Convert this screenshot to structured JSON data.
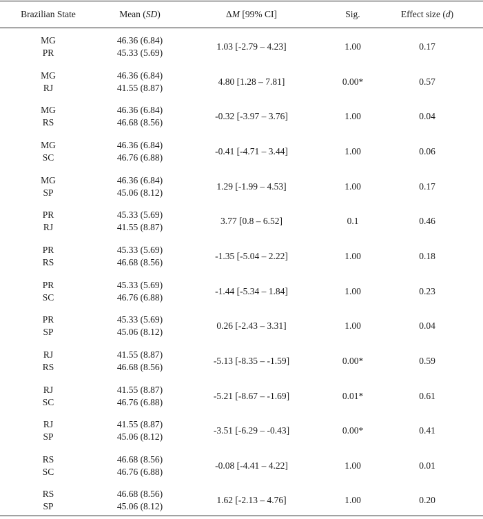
{
  "table": {
    "headers": {
      "state": "Brazilian State",
      "mean_pre": "Mean (",
      "mean_it": "SD",
      "mean_post": ")",
      "delta_pre": "Δ",
      "delta_it": "M",
      "delta_post": " [99% CI]",
      "sig": "Sig.",
      "effect_pre": "Effect size (",
      "effect_it": "d",
      "effect_post": ")"
    },
    "rows": [
      {
        "state_a": "MG",
        "state_b": "PR",
        "mean_a": "46.36 (6.84)",
        "mean_b": "45.33 (5.69)",
        "delta": "1.03 [-2.79 – 4.23]",
        "sig": "1.00",
        "effect": "0.17"
      },
      {
        "state_a": "MG",
        "state_b": "RJ",
        "mean_a": "46.36 (6.84)",
        "mean_b": "41.55 (8.87)",
        "delta": "4.80 [1.28 – 7.81]",
        "sig": "0.00*",
        "effect": "0.57"
      },
      {
        "state_a": "MG",
        "state_b": "RS",
        "mean_a": "46.36 (6.84)",
        "mean_b": "46.68 (8.56)",
        "delta": "-0.32 [-3.97 – 3.76]",
        "sig": "1.00",
        "effect": "0.04"
      },
      {
        "state_a": "MG",
        "state_b": "SC",
        "mean_a": "46.36 (6.84)",
        "mean_b": "46.76 (6.88)",
        "delta": "-0.41 [-4.71 – 3.44]",
        "sig": "1.00",
        "effect": "0.06"
      },
      {
        "state_a": "MG",
        "state_b": "SP",
        "mean_a": "46.36 (6.84)",
        "mean_b": "45.06 (8.12)",
        "delta": "1.29 [-1.99 – 4.53]",
        "sig": "1.00",
        "effect": "0.17"
      },
      {
        "state_a": "PR",
        "state_b": "RJ",
        "mean_a": "45.33 (5.69)",
        "mean_b": "41.55 (8.87)",
        "delta": "3.77 [0.8 – 6.52]",
        "sig": "0.1",
        "effect": "0.46"
      },
      {
        "state_a": "PR",
        "state_b": "RS",
        "mean_a": "45.33 (5.69)",
        "mean_b": "46.68 (8.56)",
        "delta": "-1.35 [-5.04 – 2.22]",
        "sig": "1.00",
        "effect": "0.18"
      },
      {
        "state_a": "PR",
        "state_b": "SC",
        "mean_a": "45.33 (5.69)",
        "mean_b": "46.76 (6.88)",
        "delta": "-1.44 [-5.34 – 1.84]",
        "sig": "1.00",
        "effect": "0.23"
      },
      {
        "state_a": "PR",
        "state_b": "SP",
        "mean_a": "45.33 (5.69)",
        "mean_b": "45.06 (8.12)",
        "delta": "0.26 [-2.43 – 3.31]",
        "sig": "1.00",
        "effect": "0.04"
      },
      {
        "state_a": "RJ",
        "state_b": "RS",
        "mean_a": "41.55 (8.87)",
        "mean_b": "46.68 (8.56)",
        "delta": "-5.13 [-8.35 – -1.59]",
        "sig": "0.00*",
        "effect": "0.59"
      },
      {
        "state_a": "RJ",
        "state_b": "SC",
        "mean_a": "41.55 (8.87)",
        "mean_b": "46.76 (6.88)",
        "delta": "-5.21 [-8.67 – -1.69]",
        "sig": "0.01*",
        "effect": "0.61"
      },
      {
        "state_a": "RJ",
        "state_b": "SP",
        "mean_a": "41.55 (8.87)",
        "mean_b": "45.06 (8.12)",
        "delta": "-3.51 [-6.29 – -0.43]",
        "sig": "0.00*",
        "effect": "0.41"
      },
      {
        "state_a": "RS",
        "state_b": "SC",
        "mean_a": "46.68 (8.56)",
        "mean_b": "46.76 (6.88)",
        "delta": "-0.08 [-4.41 – 4.22]",
        "sig": "1.00",
        "effect": "0.01"
      },
      {
        "state_a": "RS",
        "state_b": "SP",
        "mean_a": "46.68 (8.56)",
        "mean_b": "45.06 (8.12)",
        "delta": "1.62 [-2.13 – 4.76]",
        "sig": "1.00",
        "effect": "0.20"
      }
    ]
  }
}
